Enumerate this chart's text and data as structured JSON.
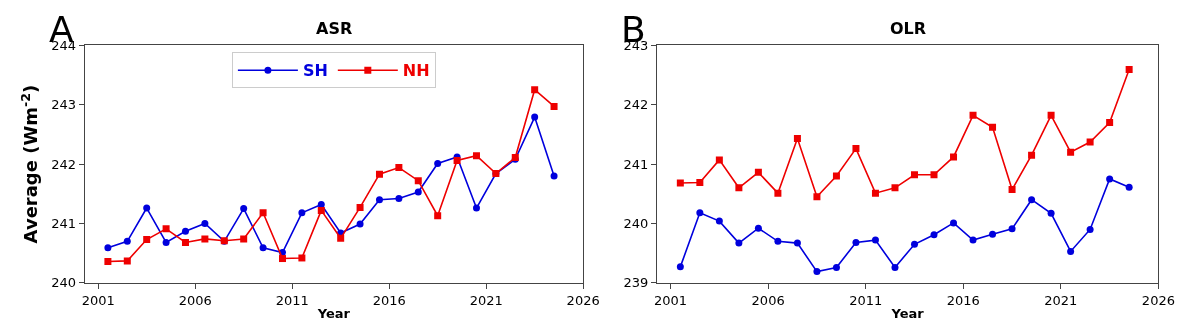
{
  "chart_data": [
    {
      "type": "line",
      "title": "ASR",
      "xlabel": "Year",
      "ylabel": "Average (Wm$^{-2}$)",
      "annotations": [
        "A"
      ],
      "x": [
        2001.5,
        2002.5,
        2003.5,
        2004.5,
        2005.5,
        2006.5,
        2007.5,
        2008.5,
        2009.5,
        2010.5,
        2011.5,
        2012.5,
        2013.5,
        2014.5,
        2015.5,
        2016.5,
        2017.5,
        2018.5,
        2019.5,
        2020.5,
        2021.5,
        2022.5,
        2023.5,
        2024.5
      ],
      "series": [
        {
          "name": "SH",
          "color": "#0000dd",
          "marker": "circle",
          "values": [
            240.59,
            240.7,
            241.26,
            240.68,
            240.87,
            241.0,
            240.7,
            241.25,
            240.59,
            240.51,
            241.18,
            241.32,
            240.84,
            240.99,
            241.4,
            241.42,
            241.53,
            242.01,
            242.12,
            241.26,
            241.84,
            242.08,
            242.79,
            241.8
          ]
        },
        {
          "name": "NH",
          "color": "#ee0000",
          "marker": "square",
          "values": [
            240.36,
            240.37,
            240.73,
            240.91,
            240.68,
            240.74,
            240.71,
            240.74,
            241.18,
            240.41,
            240.42,
            241.22,
            240.75,
            241.27,
            241.83,
            241.94,
            241.72,
            241.13,
            242.06,
            242.14,
            241.84,
            242.11,
            243.25,
            242.97
          ]
        }
      ],
      "xlim": [
        2000.3,
        2026
      ],
      "xticks": [
        2001,
        2006,
        2011,
        2016,
        2021,
        2026
      ],
      "ylim": [
        240,
        244
      ],
      "yticks": [
        240,
        241,
        242,
        243,
        244
      ],
      "legend": "top"
    },
    {
      "type": "line",
      "title": "OLR",
      "xlabel": "Year",
      "annotations": [
        "B"
      ],
      "x": [
        2001.5,
        2002.5,
        2003.5,
        2004.5,
        2005.5,
        2006.5,
        2007.5,
        2008.5,
        2009.5,
        2010.5,
        2011.5,
        2012.5,
        2013.5,
        2014.5,
        2015.5,
        2016.5,
        2017.5,
        2018.5,
        2019.5,
        2020.5,
        2021.5,
        2022.5,
        2023.5,
        2024.5
      ],
      "series": [
        {
          "color": "#0000dd",
          "marker": "circle",
          "values": [
            239.27,
            240.18,
            240.04,
            239.67,
            239.92,
            239.7,
            239.67,
            239.19,
            239.26,
            239.68,
            239.72,
            239.26,
            239.65,
            239.81,
            240.01,
            239.72,
            239.82,
            239.91,
            240.4,
            240.17,
            239.53,
            239.9,
            240.75,
            240.61
          ]
        },
        {
          "color": "#ee0000",
          "marker": "square",
          "values": [
            240.68,
            240.69,
            241.07,
            240.6,
            240.86,
            240.51,
            241.43,
            240.45,
            240.8,
            241.26,
            240.51,
            240.6,
            240.82,
            240.82,
            241.12,
            241.82,
            241.62,
            240.57,
            241.15,
            241.82,
            241.2,
            241.37,
            241.7,
            242.59
          ]
        }
      ],
      "xlim": [
        2000.3,
        2026
      ],
      "xticks": [
        2001,
        2006,
        2011,
        2016,
        2021,
        2026
      ],
      "ylim": [
        239,
        243
      ],
      "yticks": [
        239,
        240,
        241,
        242,
        243
      ]
    }
  ]
}
